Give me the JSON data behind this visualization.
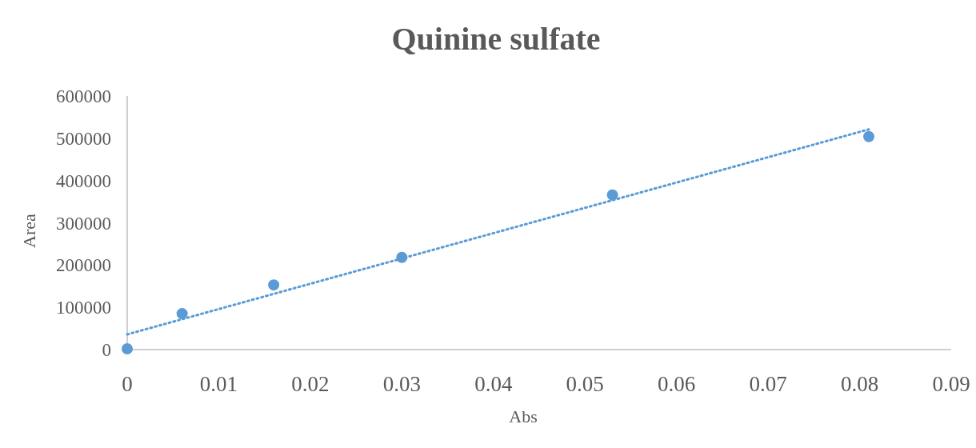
{
  "chart_data": {
    "type": "scatter",
    "title": "Quinine sulfate",
    "xlabel": "Abs",
    "ylabel": "Area",
    "xlim": [
      0,
      0.09
    ],
    "xticks": [
      0,
      0.01,
      0.02,
      0.03,
      0.04,
      0.05,
      0.06,
      0.07,
      0.08,
      0.09
    ],
    "ylim": [
      0,
      600000
    ],
    "yticks": [
      0,
      100000,
      200000,
      300000,
      400000,
      500000,
      600000
    ],
    "grid": false,
    "series": [
      {
        "color": "#5b9bd5",
        "marker": "circle",
        "x": [
          0,
          0.006,
          0.016,
          0.03,
          0.053,
          0.081
        ],
        "values": [
          2000,
          85000,
          153000,
          218000,
          366000,
          504000
        ]
      },
      {
        "type": "line",
        "color": "#5b9bd5",
        "line_style": "dotted",
        "marker": "none",
        "x": [
          0,
          0.081
        ],
        "values": [
          36000,
          521000
        ]
      }
    ]
  }
}
